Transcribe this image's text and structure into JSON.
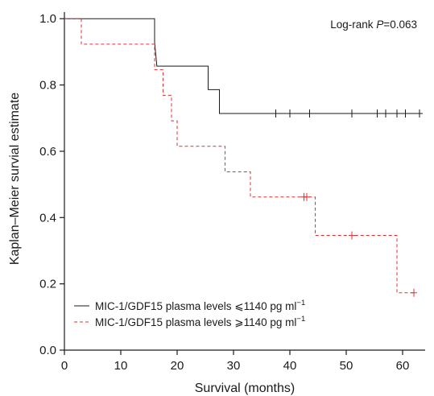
{
  "chart_data": {
    "type": "line",
    "subtype": "kaplan-meier-step",
    "xlabel": "Survival (months)",
    "ylabel": "Kaplan–Meier survial estimate",
    "xlim": [
      0,
      64
    ],
    "ylim": [
      0.0,
      1.02
    ],
    "xticks": [
      "0",
      "10",
      "20",
      "30",
      "40",
      "50",
      "60"
    ],
    "xtick_values": [
      0,
      10,
      20,
      30,
      40,
      50,
      60
    ],
    "yticks": [
      "0.0",
      "0.2",
      "0.4",
      "0.6",
      "0.8",
      "1.0"
    ],
    "ytick_values": [
      0.0,
      0.2,
      0.4,
      0.6,
      0.8,
      1.0
    ],
    "grid": false,
    "annotation": {
      "prefix": "Log-rank ",
      "italic": "P",
      "suffix": "=0.063",
      "placement": "top-right"
    },
    "legend_placement": "bottom-left",
    "series": [
      {
        "label_main": "MIC-1/GDF15 plasma levels ⩽1140 pg ml",
        "label_sup": "−1",
        "color": "#1a1a1a",
        "line_style": "solid",
        "steps": [
          [
            0,
            1.0
          ],
          [
            16,
            1.0
          ],
          [
            16,
            0.929
          ],
          [
            16.4,
            0.857
          ],
          [
            25.5,
            0.857
          ],
          [
            25.5,
            0.786
          ],
          [
            27.5,
            0.786
          ],
          [
            27.5,
            0.714
          ],
          [
            63.5,
            0.714
          ]
        ],
        "censored": [
          [
            37.5,
            0.714
          ],
          [
            40,
            0.714
          ],
          [
            43.5,
            0.714
          ],
          [
            51,
            0.714
          ],
          [
            55.5,
            0.714
          ],
          [
            57,
            0.714
          ],
          [
            59,
            0.714
          ],
          [
            60.5,
            0.714
          ],
          [
            63,
            0.714
          ]
        ]
      },
      {
        "label_main": "MIC-1/GDF15 plasma levels ⩾1140 pg ml",
        "label_sup": "−1",
        "color": "#e0312f",
        "line_style": "dashed",
        "steps": [
          [
            0,
            1.0
          ],
          [
            3,
            1.0
          ],
          [
            3,
            0.923
          ],
          [
            16,
            0.923
          ],
          [
            16,
            0.846
          ],
          [
            17.5,
            0.846
          ],
          [
            17.5,
            0.769
          ],
          [
            19,
            0.769
          ],
          [
            19,
            0.692
          ],
          [
            20,
            0.692
          ],
          [
            20,
            0.615
          ],
          [
            28.5,
            0.615
          ],
          [
            28.5,
            0.538
          ],
          [
            33,
            0.538
          ],
          [
            33,
            0.462
          ],
          [
            44.5,
            0.462
          ],
          [
            44.5,
            0.346
          ],
          [
            59,
            0.346
          ],
          [
            59,
            0.173
          ],
          [
            62,
            0.173
          ]
        ],
        "censored": [
          [
            42.5,
            0.462
          ],
          [
            43,
            0.462
          ],
          [
            51,
            0.346
          ],
          [
            62,
            0.173
          ]
        ]
      }
    ]
  }
}
